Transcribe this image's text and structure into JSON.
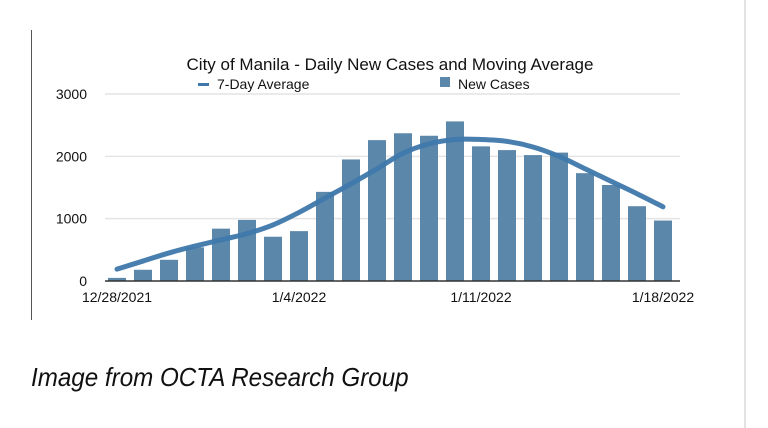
{
  "caption": "Image from OCTA Research Group",
  "chart_data": {
    "type": "bar",
    "title": "City of Manila - Daily New Cases and Moving Average",
    "xlabel": "",
    "ylabel": "",
    "ylim": [
      0,
      3000
    ],
    "yticks": [
      "0",
      "1000",
      "2000",
      "3000"
    ],
    "ytick_values": [
      0,
      1000,
      2000,
      3000
    ],
    "grid": true,
    "legend_position": "top",
    "x_tick_labels": [
      "12/28/2021",
      "1/4/2022",
      "1/11/2022",
      "1/18/2022"
    ],
    "x_tick_indices": [
      0,
      7,
      14,
      21
    ],
    "categories": [
      "12/28/2021",
      "12/29/2021",
      "12/30/2021",
      "12/31/2021",
      "1/1/2022",
      "1/2/2022",
      "1/3/2022",
      "1/4/2022",
      "1/5/2022",
      "1/6/2022",
      "1/7/2022",
      "1/8/2022",
      "1/9/2022",
      "1/10/2022",
      "1/11/2022",
      "1/12/2022",
      "1/13/2022",
      "1/14/2022",
      "1/15/2022",
      "1/16/2022",
      "1/17/2022",
      "1/18/2022"
    ],
    "series": [
      {
        "name": "New Cases",
        "type": "bar",
        "color": "#5b87aa",
        "values": [
          50,
          180,
          340,
          540,
          840,
          980,
          710,
          800,
          1430,
          1950,
          2260,
          2370,
          2330,
          2560,
          2160,
          2100,
          2020,
          2060,
          1730,
          1540,
          1200,
          970
        ]
      },
      {
        "name": "7-Day Average",
        "type": "line",
        "color": "#3f78ab",
        "values": [
          190,
          320,
          450,
          560,
          660,
          760,
          900,
          1100,
          1330,
          1560,
          1800,
          2050,
          2200,
          2270,
          2270,
          2240,
          2150,
          2000,
          1800,
          1600,
          1400,
          1190
        ]
      }
    ]
  }
}
